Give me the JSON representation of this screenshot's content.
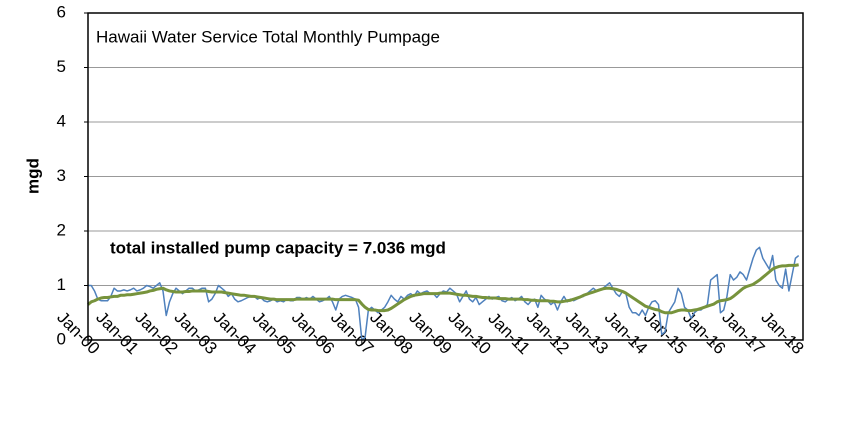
{
  "chart_data": {
    "type": "line",
    "title": "Hawaii Water Service Total Monthly Pumpage",
    "annotation": "total installed pump capacity = 7.036 mgd",
    "y_label": "mgd",
    "categories": [
      "Jan-00",
      null,
      null,
      null,
      null,
      null,
      null,
      null,
      null,
      null,
      null,
      null,
      "Jan-01",
      null,
      null,
      null,
      null,
      null,
      null,
      null,
      null,
      null,
      null,
      null,
      "Jan-02",
      null,
      null,
      null,
      null,
      null,
      null,
      null,
      null,
      null,
      null,
      null,
      "Jan-03",
      null,
      null,
      null,
      null,
      null,
      null,
      null,
      null,
      null,
      null,
      null,
      "Jan-04",
      null,
      null,
      null,
      null,
      null,
      null,
      null,
      null,
      null,
      null,
      null,
      "Jan-05",
      null,
      null,
      null,
      null,
      null,
      null,
      null,
      null,
      null,
      null,
      null,
      "Jan-06",
      null,
      null,
      null,
      null,
      null,
      null,
      null,
      null,
      null,
      null,
      null,
      "Jan-07",
      null,
      null,
      null,
      null,
      null,
      null,
      null,
      null,
      null,
      null,
      null,
      "Jan-08",
      null,
      null,
      null,
      null,
      null,
      null,
      null,
      null,
      null,
      null,
      null,
      "Jan-09",
      null,
      null,
      null,
      null,
      null,
      null,
      null,
      null,
      null,
      null,
      null,
      "Jan-10",
      null,
      null,
      null,
      null,
      null,
      null,
      null,
      null,
      null,
      null,
      null,
      "Jan-11",
      null,
      null,
      null,
      null,
      null,
      null,
      null,
      null,
      null,
      null,
      null,
      "Jan-12",
      null,
      null,
      null,
      null,
      null,
      null,
      null,
      null,
      null,
      null,
      null,
      "Jan-13",
      null,
      null,
      null,
      null,
      null,
      null,
      null,
      null,
      null,
      null,
      null,
      "Jan-14",
      null,
      null,
      null,
      null,
      null,
      null,
      null,
      null,
      null,
      null,
      null,
      "Jan-15",
      null,
      null,
      null,
      null,
      null,
      null,
      null,
      null,
      null,
      null,
      null,
      "Jan-16",
      null,
      null,
      null,
      null,
      null,
      null,
      null,
      null,
      null,
      null,
      null,
      "Jan-17",
      null,
      null,
      null,
      null,
      null,
      null,
      null,
      null,
      null,
      null,
      null,
      "Jan-18",
      null,
      null
    ],
    "series": [
      {
        "color": "#4f81bd",
        "width": 1.5,
        "values": [
          1.0,
          1.0,
          0.9,
          0.75,
          0.72,
          0.72,
          0.72,
          0.8,
          0.95,
          0.9,
          0.9,
          0.92,
          0.9,
          0.92,
          0.95,
          0.9,
          0.92,
          0.95,
          1.0,
          0.98,
          0.95,
          1.0,
          1.05,
          0.9,
          0.45,
          0.7,
          0.85,
          0.95,
          0.9,
          0.85,
          0.9,
          0.95,
          0.95,
          0.9,
          0.92,
          0.95,
          0.95,
          0.7,
          0.75,
          0.85,
          1.0,
          0.95,
          0.9,
          0.8,
          0.85,
          0.75,
          0.7,
          0.72,
          0.75,
          0.78,
          0.8,
          0.8,
          0.75,
          0.78,
          0.72,
          0.7,
          0.72,
          0.75,
          0.7,
          0.72,
          0.7,
          0.75,
          0.72,
          0.72,
          0.78,
          0.78,
          0.75,
          0.78,
          0.75,
          0.8,
          0.75,
          0.7,
          0.72,
          0.75,
          0.8,
          0.7,
          0.55,
          0.75,
          0.8,
          0.82,
          0.8,
          0.78,
          0.75,
          0.6,
          0.0,
          0.05,
          0.55,
          0.6,
          0.55,
          0.5,
          0.55,
          0.6,
          0.7,
          0.82,
          0.75,
          0.7,
          0.8,
          0.75,
          0.82,
          0.85,
          0.8,
          0.9,
          0.85,
          0.88,
          0.9,
          0.85,
          0.85,
          0.78,
          0.85,
          0.9,
          0.88,
          0.95,
          0.9,
          0.85,
          0.7,
          0.8,
          0.9,
          0.75,
          0.7,
          0.78,
          0.65,
          0.7,
          0.75,
          0.8,
          0.75,
          0.78,
          0.8,
          0.72,
          0.7,
          0.75,
          0.78,
          0.72,
          0.75,
          0.8,
          0.7,
          0.65,
          0.72,
          0.75,
          0.6,
          0.82,
          0.75,
          0.72,
          0.65,
          0.7,
          0.55,
          0.7,
          0.8,
          0.7,
          0.75,
          0.72,
          0.75,
          0.78,
          0.8,
          0.85,
          0.9,
          0.95,
          0.9,
          0.92,
          0.95,
          1.0,
          1.05,
          0.95,
          0.85,
          0.8,
          0.9,
          0.85,
          0.6,
          0.5,
          0.5,
          0.45,
          0.55,
          0.45,
          0.6,
          0.7,
          0.72,
          0.65,
          0.1,
          0.15,
          0.5,
          0.6,
          0.7,
          0.95,
          0.85,
          0.6,
          0.55,
          0.4,
          0.5,
          0.55,
          0.55,
          0.6,
          0.65,
          1.1,
          1.15,
          1.2,
          0.5,
          0.55,
          0.8,
          1.2,
          1.1,
          1.15,
          1.25,
          1.2,
          1.1,
          1.3,
          1.5,
          1.65,
          1.7,
          1.5,
          1.4,
          1.3,
          1.55,
          1.1,
          1.0,
          0.95,
          1.3,
          0.9,
          1.2,
          1.5,
          1.55
        ]
      },
      {
        "color": "#77933c",
        "width": 3,
        "values": [
          0.65,
          0.7,
          0.72,
          0.75,
          0.77,
          0.78,
          0.78,
          0.79,
          0.8,
          0.8,
          0.82,
          0.82,
          0.83,
          0.83,
          0.84,
          0.85,
          0.86,
          0.87,
          0.88,
          0.9,
          0.91,
          0.93,
          0.94,
          0.95,
          0.92,
          0.9,
          0.89,
          0.88,
          0.88,
          0.88,
          0.89,
          0.89,
          0.9,
          0.9,
          0.9,
          0.9,
          0.9,
          0.89,
          0.88,
          0.88,
          0.88,
          0.88,
          0.87,
          0.86,
          0.85,
          0.84,
          0.83,
          0.82,
          0.82,
          0.81,
          0.8,
          0.8,
          0.79,
          0.78,
          0.77,
          0.76,
          0.75,
          0.75,
          0.74,
          0.74,
          0.74,
          0.74,
          0.74,
          0.74,
          0.75,
          0.75,
          0.75,
          0.75,
          0.75,
          0.75,
          0.75,
          0.75,
          0.75,
          0.75,
          0.75,
          0.75,
          0.74,
          0.74,
          0.74,
          0.74,
          0.74,
          0.74,
          0.74,
          0.73,
          0.66,
          0.6,
          0.56,
          0.55,
          0.55,
          0.54,
          0.54,
          0.54,
          0.55,
          0.58,
          0.62,
          0.66,
          0.7,
          0.74,
          0.77,
          0.8,
          0.82,
          0.83,
          0.84,
          0.85,
          0.85,
          0.85,
          0.85,
          0.85,
          0.86,
          0.86,
          0.86,
          0.86,
          0.85,
          0.84,
          0.83,
          0.82,
          0.82,
          0.81,
          0.8,
          0.8,
          0.79,
          0.78,
          0.78,
          0.77,
          0.77,
          0.77,
          0.76,
          0.76,
          0.76,
          0.75,
          0.75,
          0.75,
          0.75,
          0.75,
          0.74,
          0.74,
          0.73,
          0.73,
          0.72,
          0.72,
          0.72,
          0.72,
          0.71,
          0.71,
          0.7,
          0.7,
          0.71,
          0.72,
          0.73,
          0.75,
          0.77,
          0.79,
          0.82,
          0.84,
          0.86,
          0.88,
          0.9,
          0.92,
          0.94,
          0.95,
          0.95,
          0.94,
          0.93,
          0.91,
          0.89,
          0.86,
          0.82,
          0.78,
          0.74,
          0.7,
          0.66,
          0.62,
          0.6,
          0.58,
          0.56,
          0.55,
          0.52,
          0.5,
          0.5,
          0.5,
          0.52,
          0.54,
          0.55,
          0.55,
          0.54,
          0.54,
          0.55,
          0.56,
          0.58,
          0.6,
          0.62,
          0.64,
          0.66,
          0.7,
          0.72,
          0.73,
          0.74,
          0.76,
          0.8,
          0.85,
          0.9,
          0.95,
          0.98,
          1.0,
          1.02,
          1.06,
          1.1,
          1.15,
          1.2,
          1.25,
          1.3,
          1.33,
          1.35,
          1.36,
          1.36,
          1.37,
          1.37,
          1.37,
          1.38
        ]
      }
    ],
    "ylim": [
      0,
      6
    ],
    "yticks": [
      0,
      1,
      2,
      3,
      4,
      5,
      6
    ],
    "grid": true
  }
}
